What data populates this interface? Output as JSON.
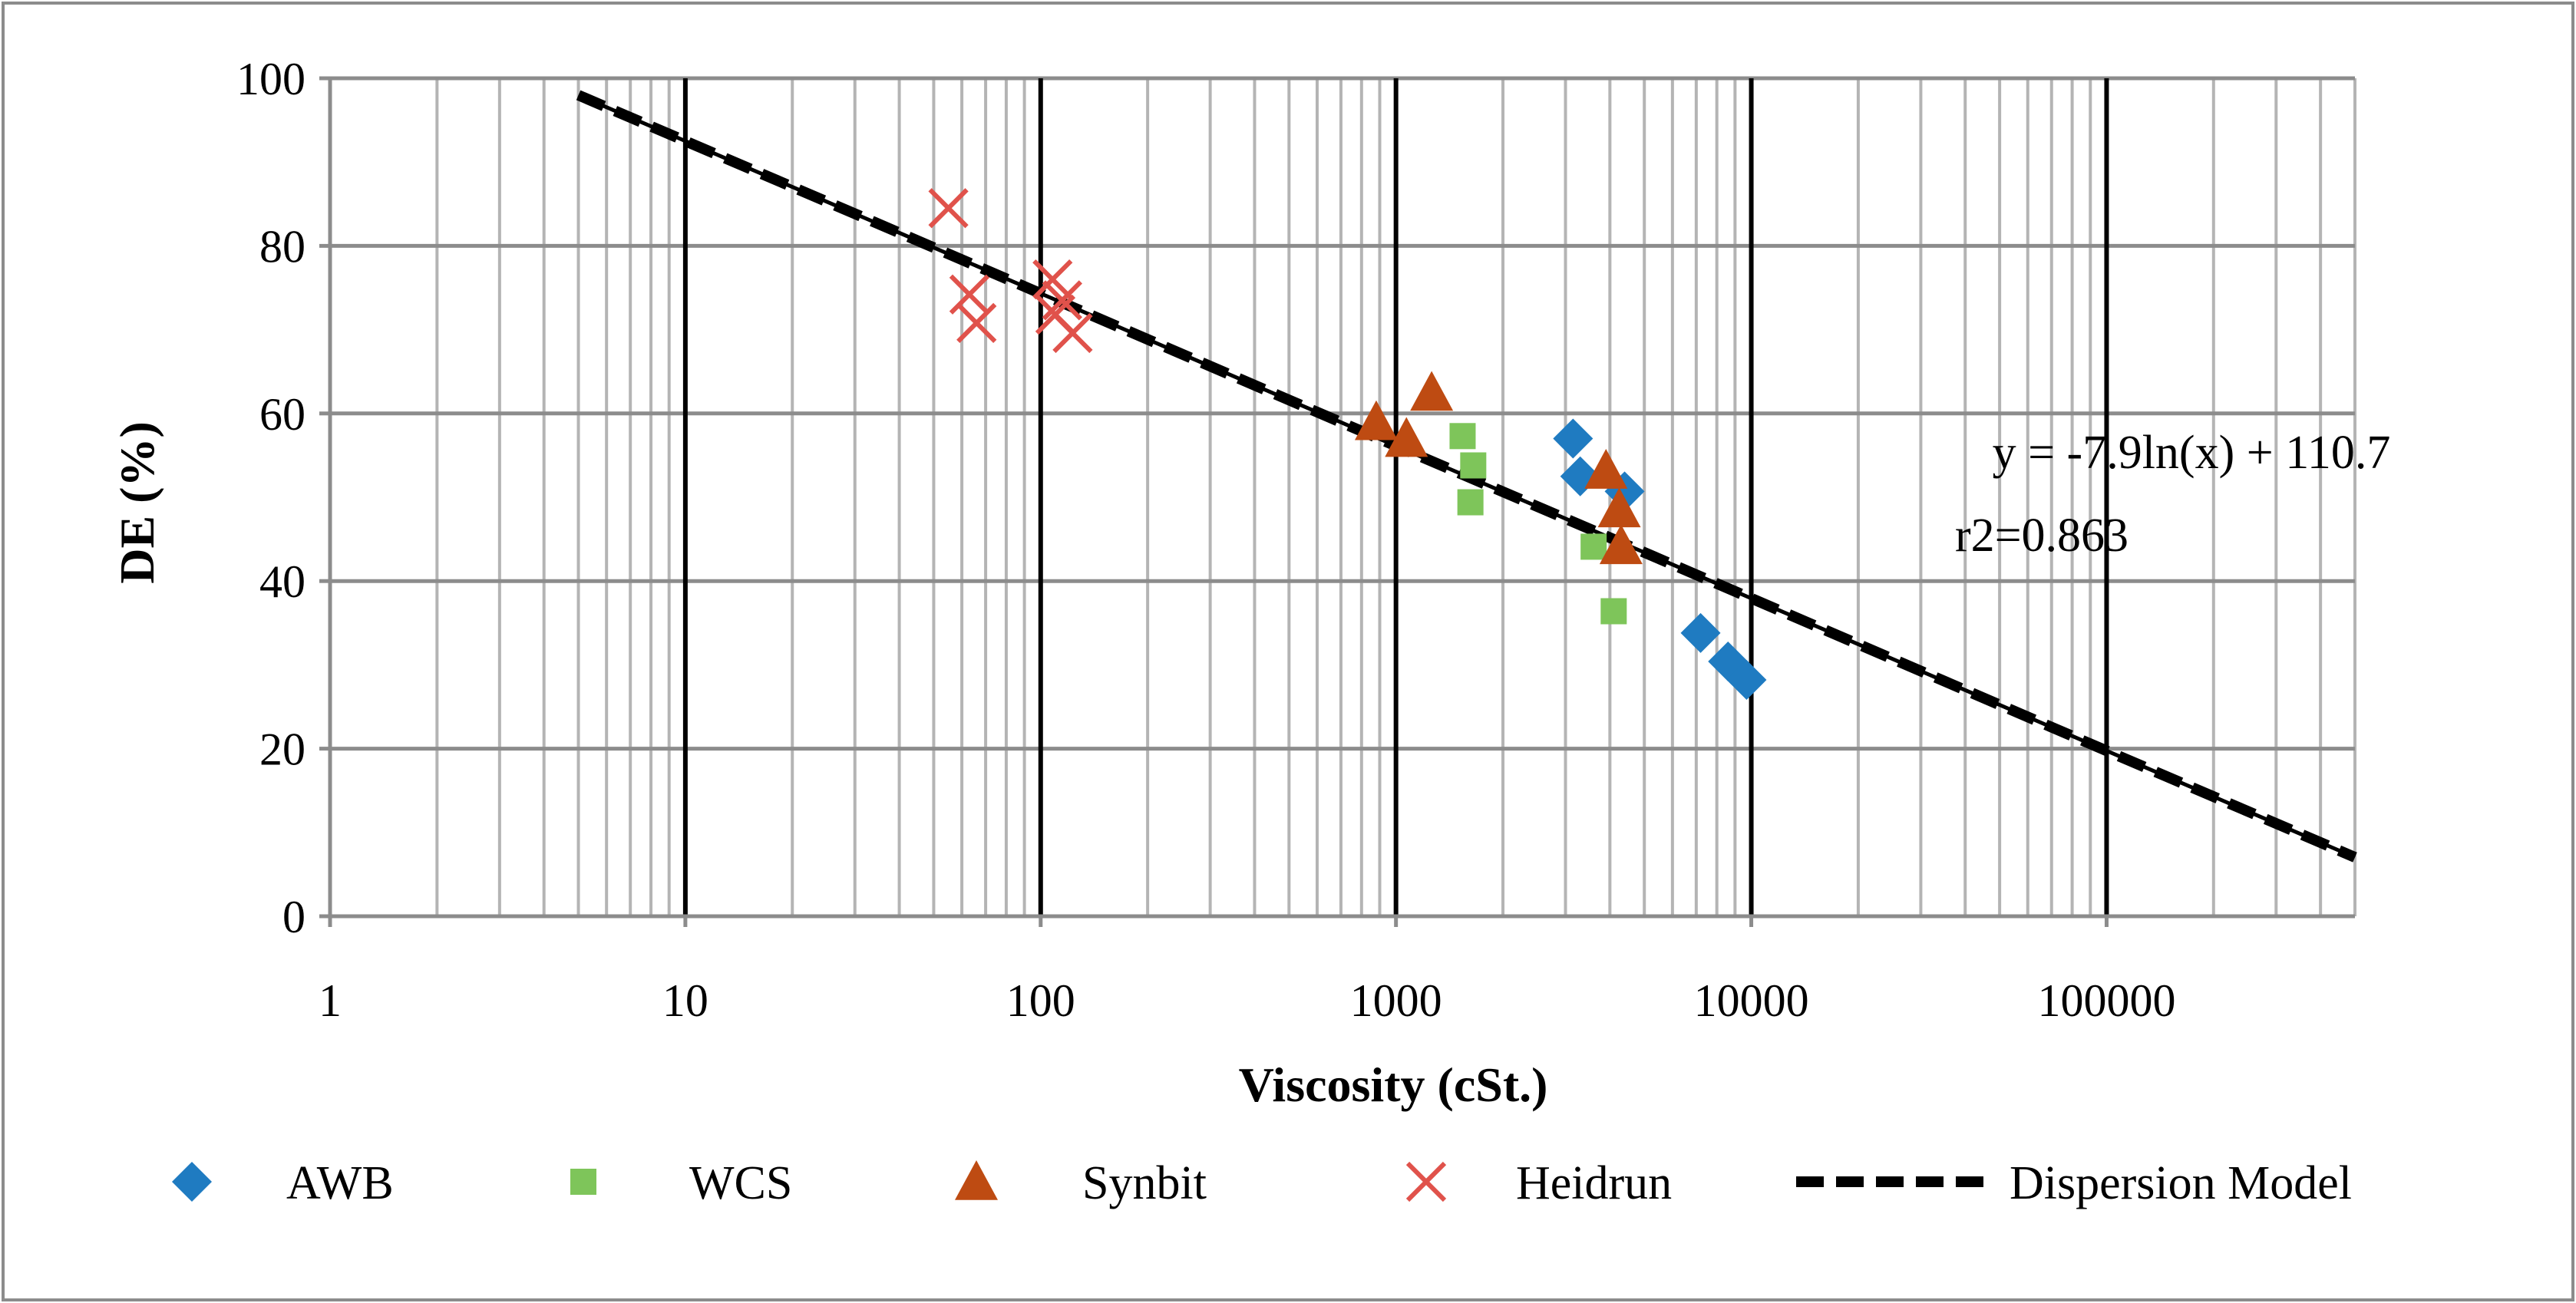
{
  "chart_data": {
    "type": "scatter",
    "xscale": "log",
    "xlim": [
      1,
      500000
    ],
    "ylim": [
      0,
      100
    ],
    "xlabel": "Viscosity (cSt.)",
    "ylabel": "DE (%)",
    "x_ticks": [
      1,
      10,
      100,
      1000,
      10000,
      100000
    ],
    "x_tick_labels": [
      "1",
      "10",
      "100",
      "1000",
      "10000",
      "100000"
    ],
    "y_ticks": [
      0,
      20,
      40,
      60,
      80,
      100
    ],
    "y_tick_labels": [
      "0",
      "20",
      "40",
      "60",
      "80",
      "100"
    ],
    "grid": true,
    "legend_position": "bottom",
    "series": [
      {
        "name": "AWB",
        "marker": "diamond",
        "color": "#1F7BC1",
        "points": [
          [
            3150,
            57
          ],
          [
            3300,
            52.5
          ],
          [
            4400,
            50.7
          ],
          [
            7200,
            33.8
          ],
          [
            8600,
            30.4
          ],
          [
            9700,
            28.2
          ]
        ]
      },
      {
        "name": "WCS",
        "marker": "square",
        "color": "#7EC55A",
        "points": [
          [
            1540,
            57.3
          ],
          [
            1650,
            53.8
          ],
          [
            1620,
            49.4
          ],
          [
            3600,
            44.1
          ],
          [
            4100,
            36.4
          ]
        ]
      },
      {
        "name": "Synbit",
        "marker": "triangle",
        "color": "#BE4B12",
        "points": [
          [
            880,
            59
          ],
          [
            1070,
            57
          ],
          [
            1260,
            62.5
          ],
          [
            3900,
            53.2
          ],
          [
            4250,
            48.6
          ],
          [
            4300,
            44.2
          ]
        ]
      },
      {
        "name": "Heidrun",
        "marker": "x",
        "color": "#E0524B",
        "points": [
          [
            55,
            84.5
          ],
          [
            63,
            74.2
          ],
          [
            66,
            70.8
          ],
          [
            108,
            76
          ],
          [
            115,
            73.5
          ],
          [
            110,
            71.8
          ],
          [
            123,
            69.6
          ]
        ]
      },
      {
        "name": "Dispersion Model",
        "marker": "line",
        "color": "#000000",
        "equation": {
          "a": -7.9,
          "b": 110.7
        },
        "x_range": [
          5,
          500000
        ]
      }
    ],
    "annotations": [
      "y = -7.9ln(x) + 110.7",
      "r2=0.863"
    ]
  }
}
